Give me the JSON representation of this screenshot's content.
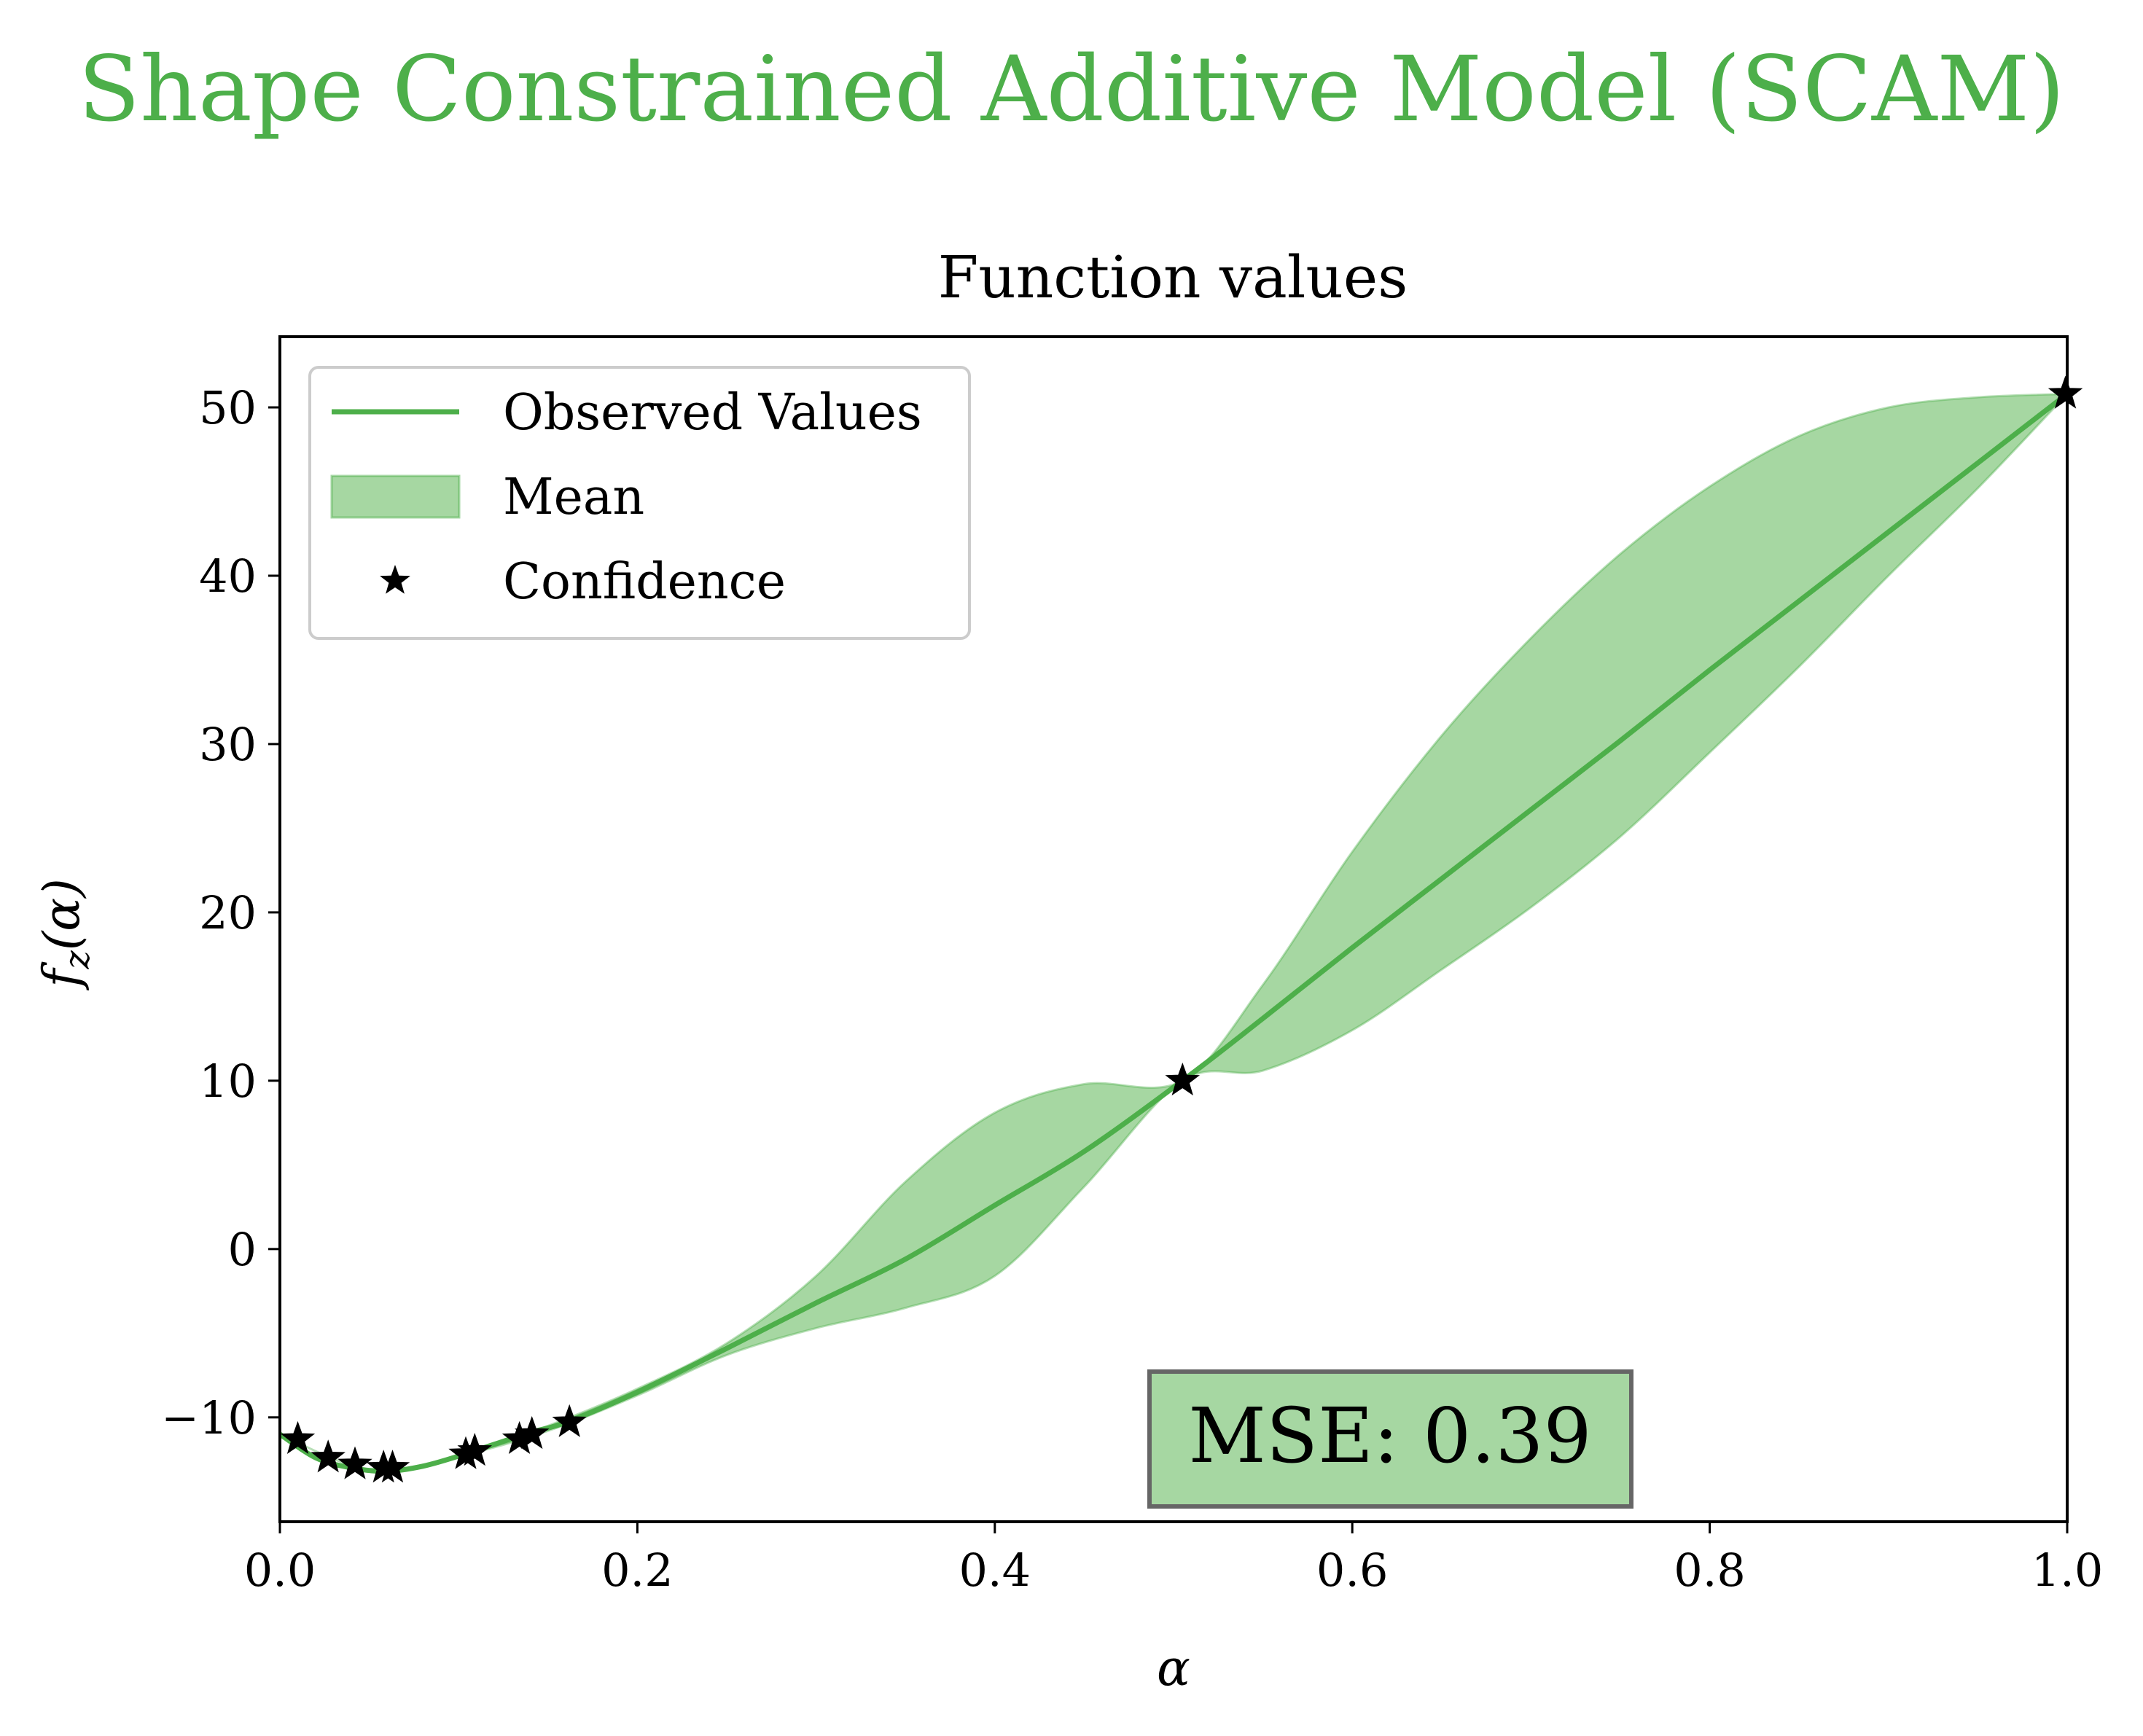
{
  "suptitle": "Shape Constrained Additive Model (SCAM)",
  "colors": {
    "accent": "#4daf4a",
    "band": "#a6d7a2",
    "marker": "#000000",
    "axis": "#000000"
  },
  "chart_data": {
    "type": "line",
    "title": "Function values",
    "xlabel": "α",
    "ylabel": "f_z(α)",
    "xlim": [
      0.0,
      1.0
    ],
    "ylim": [
      -16.2,
      54.2
    ],
    "xticks": [
      0.0,
      0.2,
      0.4,
      0.6,
      0.8,
      1.0
    ],
    "xtick_labels": [
      "0.0",
      "0.2",
      "0.4",
      "0.6",
      "0.8",
      "1.0"
    ],
    "yticks": [
      -10,
      0,
      10,
      20,
      30,
      40,
      50
    ],
    "ytick_labels": [
      "−10",
      "0",
      "10",
      "20",
      "30",
      "40",
      "50"
    ],
    "legend": {
      "placement": "top-left",
      "entries": [
        "Observed Values",
        "Mean",
        "Confidence"
      ]
    },
    "series": [
      {
        "name": "Observed Values",
        "kind": "line",
        "x": [
          0.0,
          0.02,
          0.04,
          0.06,
          0.08,
          0.1,
          0.12,
          0.14,
          0.16,
          0.2,
          0.25,
          0.3,
          0.35,
          0.4,
          0.45,
          0.505,
          0.55,
          0.6,
          0.65,
          0.7,
          0.75,
          0.8,
          0.85,
          0.9,
          0.95,
          1.0
        ],
        "y": [
          -11.0,
          -12.4,
          -13.0,
          -13.2,
          -12.9,
          -12.3,
          -11.6,
          -10.9,
          -10.3,
          -8.5,
          -5.9,
          -3.2,
          -0.6,
          2.6,
          5.8,
          10.0,
          13.7,
          17.9,
          22.0,
          26.1,
          30.2,
          34.4,
          38.5,
          42.6,
          46.7,
          50.8
        ]
      },
      {
        "name": "Mean",
        "kind": "band",
        "x": [
          0.0,
          0.05,
          0.1,
          0.15,
          0.2,
          0.25,
          0.3,
          0.35,
          0.4,
          0.45,
          0.505,
          0.55,
          0.6,
          0.65,
          0.7,
          0.75,
          0.8,
          0.85,
          0.9,
          0.95,
          1.0
        ],
        "upper": [
          -11.0,
          -13.1,
          -12.3,
          -10.5,
          -8.3,
          -5.6,
          -1.6,
          4.0,
          8.1,
          9.8,
          10.0,
          15.7,
          23.6,
          30.5,
          36.3,
          41.3,
          45.3,
          48.3,
          50.0,
          50.6,
          50.8
        ],
        "lower": [
          -11.0,
          -13.1,
          -12.3,
          -10.8,
          -8.7,
          -6.3,
          -4.7,
          -3.5,
          -1.6,
          3.7,
          10.0,
          10.6,
          13.0,
          16.6,
          20.3,
          24.5,
          29.5,
          34.6,
          40.0,
          45.2,
          50.8
        ]
      },
      {
        "name": "Confidence",
        "kind": "scatter",
        "marker": "star",
        "x": [
          0.01,
          0.027,
          0.042,
          0.058,
          0.063,
          0.104,
          0.109,
          0.134,
          0.141,
          0.162,
          0.505,
          0.999
        ],
        "y": [
          -11.3,
          -12.4,
          -12.8,
          -13.0,
          -13.0,
          -12.2,
          -12.0,
          -11.3,
          -11.0,
          -10.3,
          10.0,
          50.8
        ]
      }
    ],
    "annotation": {
      "text": "MSE: 0.39",
      "x": 0.622,
      "y": -11.3
    }
  }
}
